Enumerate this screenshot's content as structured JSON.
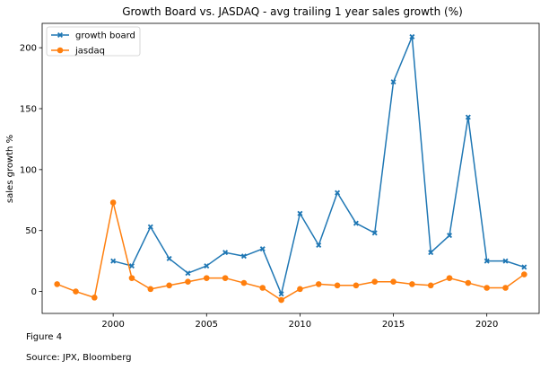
{
  "chart_data": {
    "type": "line",
    "title": "Growth Board vs. JASDAQ - avg trailing 1 year sales growth (%)",
    "xlabel": "",
    "ylabel": "sales growth %",
    "xlim": [
      1996.2,
      2022.8
    ],
    "ylim": [
      -18,
      220
    ],
    "xticks": [
      2000,
      2005,
      2010,
      2015,
      2020
    ],
    "yticks": [
      0,
      50,
      100,
      150,
      200
    ],
    "grid": false,
    "legend_position": "top-left",
    "series": [
      {
        "name": "growth board",
        "color": "#1f77b4",
        "marker": "X",
        "x": [
          2000,
          2001,
          2002,
          2003,
          2004,
          2005,
          2006,
          2007,
          2008,
          2009,
          2010,
          2011,
          2012,
          2013,
          2014,
          2015,
          2016,
          2017,
          2018,
          2019,
          2020,
          2021,
          2022
        ],
        "y": [
          25,
          21,
          53,
          27,
          15,
          21,
          32,
          29,
          35,
          -2,
          64,
          38,
          81,
          56,
          48,
          172,
          209,
          32,
          46,
          143,
          25,
          25,
          20
        ]
      },
      {
        "name": "jasdaq",
        "color": "#ff7f0e",
        "marker": "o",
        "x": [
          1997,
          1998,
          1999,
          2000,
          2001,
          2002,
          2003,
          2004,
          2005,
          2006,
          2007,
          2008,
          2009,
          2010,
          2011,
          2012,
          2013,
          2014,
          2015,
          2016,
          2017,
          2018,
          2019,
          2020,
          2021,
          2022
        ],
        "y": [
          6,
          0,
          -5,
          73,
          11,
          2,
          5,
          8,
          11,
          11,
          7,
          3,
          -7,
          2,
          6,
          5,
          5,
          8,
          8,
          6,
          5,
          11,
          7,
          3,
          3,
          14
        ]
      }
    ]
  },
  "footer": {
    "figure_label": "Figure 4",
    "source": "Source: JPX, Bloomberg"
  }
}
